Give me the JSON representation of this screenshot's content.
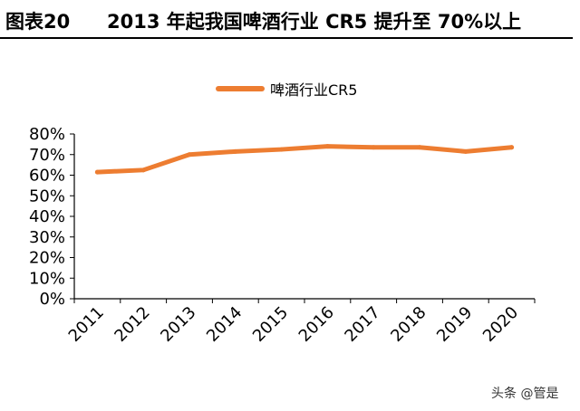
{
  "header": {
    "label": "图表20",
    "title": "2013 年起我国啤酒行业 CR5 提升至 70%以上"
  },
  "watermark": "头条 @管是",
  "colors": {
    "series": "#ED7D31",
    "axis": "#000000"
  },
  "chart_data": {
    "type": "line",
    "title": "",
    "xlabel": "",
    "ylabel": "",
    "x": [
      "2011",
      "2012",
      "2013",
      "2014",
      "2015",
      "2016",
      "2017",
      "2018",
      "2019",
      "2020"
    ],
    "ylim": [
      0,
      80
    ],
    "yticks": [
      "0%",
      "10%",
      "20%",
      "30%",
      "40%",
      "50%",
      "60%",
      "70%",
      "80%"
    ],
    "grid": false,
    "legend_position": "top",
    "series": [
      {
        "name": "啤酒行业CR5",
        "values": [
          61.5,
          62.5,
          70,
          71.5,
          72.5,
          74,
          73.5,
          73.5,
          71.5,
          73.5
        ]
      }
    ]
  }
}
